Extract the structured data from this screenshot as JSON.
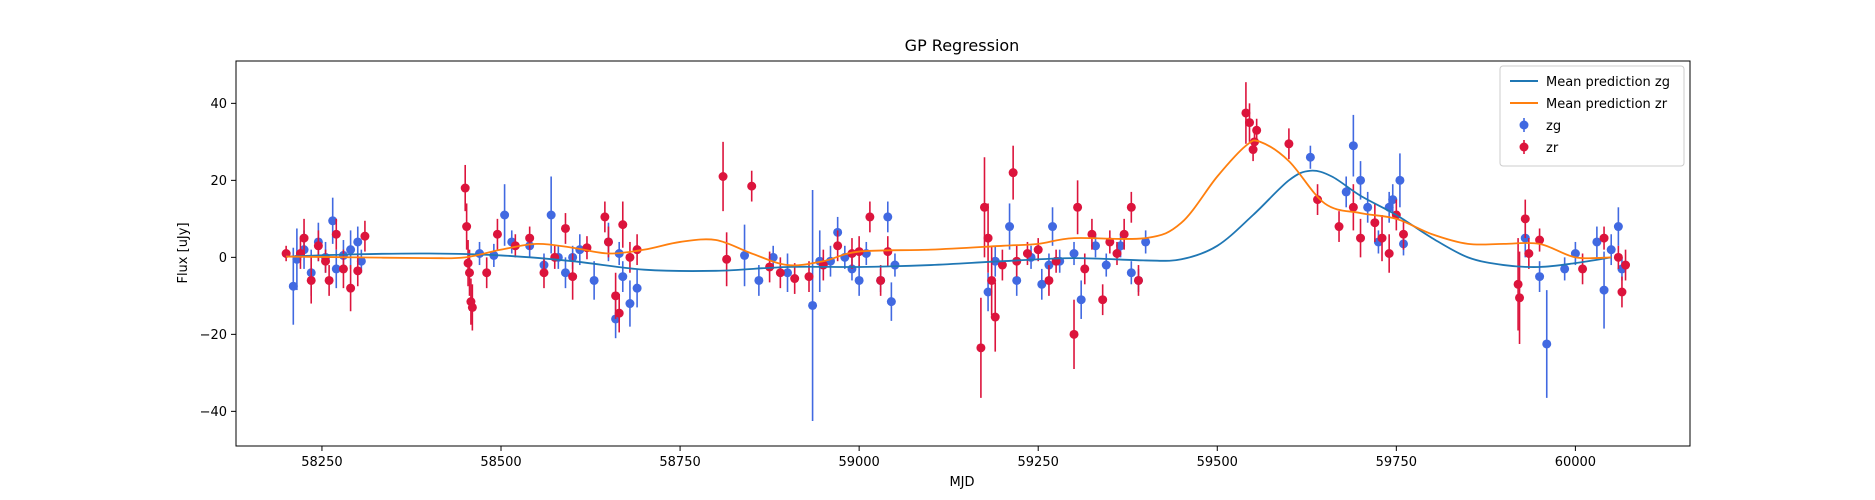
{
  "chart_data": {
    "type": "scatter",
    "title": "GP Regression",
    "xlabel": "MJD",
    "ylabel": "Flux [uJy]",
    "xlim": [
      58130,
      60160
    ],
    "ylim": [
      -49,
      51
    ],
    "xticks": [
      58250,
      58500,
      58750,
      59000,
      59250,
      59500,
      59750,
      60000
    ],
    "yticks": [
      -40,
      -20,
      0,
      20,
      40
    ],
    "grid": false,
    "legend_position": "top-right",
    "series": [
      {
        "name": "Mean prediction zg",
        "kind": "line",
        "color": "#1f77b4",
        "points": [
          [
            58200,
            0.2
          ],
          [
            58300,
            0.8
          ],
          [
            58400,
            1.0
          ],
          [
            58500,
            0.5
          ],
          [
            58600,
            -1.0
          ],
          [
            58700,
            -3.2
          ],
          [
            58800,
            -3.5
          ],
          [
            58900,
            -2.5
          ],
          [
            59000,
            -2.5
          ],
          [
            59100,
            -2.0
          ],
          [
            59200,
            -1.0
          ],
          [
            59300,
            -0.2
          ],
          [
            59400,
            -0.8
          ],
          [
            59450,
            -0.5
          ],
          [
            59500,
            3.0
          ],
          [
            59550,
            11.0
          ],
          [
            59600,
            20.0
          ],
          [
            59630,
            22.5
          ],
          [
            59660,
            21.0
          ],
          [
            59700,
            16.0
          ],
          [
            59750,
            11.0
          ],
          [
            59800,
            5.0
          ],
          [
            59850,
            0.0
          ],
          [
            59900,
            -2.0
          ],
          [
            59950,
            -2.5
          ],
          [
            60000,
            -1.5
          ],
          [
            60050,
            0.0
          ]
        ]
      },
      {
        "name": "Mean prediction zr",
        "kind": "line",
        "color": "#ff7f0e",
        "points": [
          [
            58200,
            0.2
          ],
          [
            58300,
            0.0
          ],
          [
            58400,
            -0.2
          ],
          [
            58450,
            0.0
          ],
          [
            58500,
            2.0
          ],
          [
            58550,
            3.5
          ],
          [
            58600,
            2.5
          ],
          [
            58650,
            1.0
          ],
          [
            58700,
            2.0
          ],
          [
            58750,
            4.0
          ],
          [
            58800,
            4.5
          ],
          [
            58850,
            1.0
          ],
          [
            58900,
            -2.0
          ],
          [
            58950,
            -1.0
          ],
          [
            59000,
            1.5
          ],
          [
            59100,
            2.0
          ],
          [
            59200,
            3.0
          ],
          [
            59250,
            3.5
          ],
          [
            59300,
            5.0
          ],
          [
            59400,
            5.0
          ],
          [
            59450,
            9.0
          ],
          [
            59500,
            21.0
          ],
          [
            59540,
            29.0
          ],
          [
            59560,
            30.0
          ],
          [
            59600,
            25.0
          ],
          [
            59650,
            14.0
          ],
          [
            59700,
            11.5
          ],
          [
            59750,
            10.0
          ],
          [
            59800,
            6.0
          ],
          [
            59850,
            3.5
          ],
          [
            59900,
            3.5
          ],
          [
            59950,
            3.5
          ],
          [
            60000,
            0.0
          ],
          [
            60050,
            0.0
          ]
        ]
      },
      {
        "name": "zg",
        "kind": "errorbar",
        "color": "#4169e1",
        "points": [
          [
            58210,
            -7.5,
            10
          ],
          [
            58215,
            -0.5,
            8
          ],
          [
            58225,
            2,
            5
          ],
          [
            58235,
            -4,
            6
          ],
          [
            58245,
            4,
            5
          ],
          [
            58255,
            0,
            4
          ],
          [
            58265,
            9.5,
            6
          ],
          [
            58270,
            -3,
            5
          ],
          [
            58280,
            0.5,
            4
          ],
          [
            58290,
            2,
            5
          ],
          [
            58300,
            4,
            4
          ],
          [
            58305,
            -1,
            3
          ],
          [
            58470,
            1,
            3
          ],
          [
            58490,
            0.5,
            3
          ],
          [
            58505,
            11,
            8
          ],
          [
            58515,
            4,
            3
          ],
          [
            58540,
            3,
            3
          ],
          [
            58560,
            -2,
            3
          ],
          [
            58570,
            11,
            10
          ],
          [
            58580,
            0,
            3
          ],
          [
            58590,
            -4,
            4
          ],
          [
            58600,
            0,
            3
          ],
          [
            58610,
            2,
            4
          ],
          [
            58630,
            -6,
            5
          ],
          [
            58650,
            4,
            5
          ],
          [
            58660,
            -16,
            5
          ],
          [
            58665,
            1,
            3
          ],
          [
            58670,
            -5,
            4
          ],
          [
            58680,
            -12,
            6
          ],
          [
            58690,
            -8,
            5
          ],
          [
            58840,
            0.5,
            8
          ],
          [
            58860,
            -6,
            4
          ],
          [
            58880,
            0,
            3
          ],
          [
            58900,
            -4,
            5
          ],
          [
            58935,
            -12.5,
            30
          ],
          [
            58945,
            -1,
            8
          ],
          [
            58960,
            -1,
            4
          ],
          [
            58970,
            6.5,
            4
          ],
          [
            58980,
            0,
            3
          ],
          [
            58990,
            -3,
            3
          ],
          [
            59000,
            -6,
            4
          ],
          [
            59010,
            1,
            3
          ],
          [
            59030,
            -6,
            3
          ],
          [
            59040,
            10.5,
            4
          ],
          [
            59045,
            -11.5,
            5
          ],
          [
            59050,
            -2,
            3
          ],
          [
            59180,
            -9,
            5
          ],
          [
            59190,
            -1,
            4
          ],
          [
            59210,
            8,
            6
          ],
          [
            59220,
            -6,
            4
          ],
          [
            59240,
            0,
            3
          ],
          [
            59255,
            -7,
            4
          ],
          [
            59265,
            -2,
            3
          ],
          [
            59270,
            8,
            5
          ],
          [
            59280,
            -1,
            3
          ],
          [
            59300,
            1,
            3
          ],
          [
            59310,
            -11,
            5
          ],
          [
            59330,
            3,
            3
          ],
          [
            59345,
            -2,
            3
          ],
          [
            59365,
            3,
            3
          ],
          [
            59380,
            -4,
            3
          ],
          [
            59390,
            -6,
            3
          ],
          [
            59400,
            4,
            3
          ],
          [
            59630,
            26,
            3
          ],
          [
            59680,
            17,
            4
          ],
          [
            59690,
            29,
            8
          ],
          [
            59700,
            20,
            5
          ],
          [
            59710,
            13,
            4
          ],
          [
            59725,
            4,
            3
          ],
          [
            59740,
            13,
            4
          ],
          [
            59745,
            15,
            4
          ],
          [
            59755,
            20,
            7
          ],
          [
            59760,
            3.5,
            3
          ],
          [
            59930,
            5,
            5
          ],
          [
            59950,
            -5,
            4
          ],
          [
            59960,
            -22.5,
            14
          ],
          [
            59985,
            -3,
            3
          ],
          [
            60000,
            1,
            3
          ],
          [
            60030,
            4,
            4
          ],
          [
            60040,
            -8.5,
            10
          ],
          [
            60050,
            2,
            4
          ],
          [
            60060,
            8,
            5
          ],
          [
            60065,
            -3,
            3
          ]
        ]
      },
      {
        "name": "zr",
        "kind": "errorbar",
        "color": "#dc143c",
        "points": [
          [
            58200,
            1,
            2
          ],
          [
            58220,
            1,
            4
          ],
          [
            58225,
            5,
            5
          ],
          [
            58235,
            -6,
            6
          ],
          [
            58245,
            3,
            4
          ],
          [
            58255,
            -1,
            3
          ],
          [
            58260,
            -6,
            4
          ],
          [
            58270,
            6,
            4
          ],
          [
            58280,
            -3,
            5
          ],
          [
            58290,
            -8,
            6
          ],
          [
            58300,
            -3.5,
            4
          ],
          [
            58310,
            5.5,
            4
          ],
          [
            58450,
            18,
            6
          ],
          [
            58452,
            8,
            6
          ],
          [
            58454,
            -1.5,
            6
          ],
          [
            58456,
            -4,
            6
          ],
          [
            58458,
            -11.5,
            6
          ],
          [
            58460,
            -13,
            6
          ],
          [
            58480,
            -4,
            4
          ],
          [
            58495,
            6,
            4
          ],
          [
            58520,
            3,
            3
          ],
          [
            58540,
            5,
            3
          ],
          [
            58560,
            -4,
            4
          ],
          [
            58575,
            0,
            3
          ],
          [
            58590,
            7.5,
            4
          ],
          [
            58600,
            -5,
            6
          ],
          [
            58620,
            2.5,
            3
          ],
          [
            58645,
            10.5,
            4
          ],
          [
            58650,
            4,
            4
          ],
          [
            58660,
            -10,
            6
          ],
          [
            58665,
            -14.5,
            5
          ],
          [
            58670,
            8.5,
            6
          ],
          [
            58680,
            0,
            4
          ],
          [
            58690,
            2,
            4
          ],
          [
            58810,
            21,
            9
          ],
          [
            58815,
            -0.5,
            7
          ],
          [
            58850,
            18.5,
            4
          ],
          [
            58875,
            -2.5,
            4
          ],
          [
            58890,
            -4,
            4
          ],
          [
            58910,
            -5.5,
            4
          ],
          [
            58930,
            -5,
            4
          ],
          [
            58950,
            -2,
            4
          ],
          [
            58970,
            3,
            4
          ],
          [
            58990,
            1,
            4
          ],
          [
            59000,
            1.5,
            4
          ],
          [
            59015,
            10.5,
            4
          ],
          [
            59030,
            -6,
            4
          ],
          [
            59040,
            1.5,
            4
          ],
          [
            59170,
            -23.5,
            13
          ],
          [
            59175,
            13,
            13
          ],
          [
            59180,
            5,
            9
          ],
          [
            59185,
            -6,
            9
          ],
          [
            59190,
            -15.5,
            9
          ],
          [
            59200,
            -2,
            4
          ],
          [
            59215,
            22,
            7
          ],
          [
            59220,
            -1,
            4
          ],
          [
            59235,
            1,
            3
          ],
          [
            59250,
            2,
            3
          ],
          [
            59265,
            -6,
            4
          ],
          [
            59275,
            -1,
            3
          ],
          [
            59300,
            -20,
            9
          ],
          [
            59305,
            13,
            7
          ],
          [
            59315,
            -3,
            4
          ],
          [
            59325,
            6,
            4
          ],
          [
            59340,
            -11,
            4
          ],
          [
            59350,
            4,
            3
          ],
          [
            59360,
            1,
            3
          ],
          [
            59370,
            6,
            4
          ],
          [
            59380,
            13,
            4
          ],
          [
            59390,
            -6,
            4
          ],
          [
            59540,
            37.5,
            8
          ],
          [
            59545,
            35,
            5
          ],
          [
            59550,
            28,
            3
          ],
          [
            59552,
            30,
            3
          ],
          [
            59555,
            33,
            3
          ],
          [
            59600,
            29.5,
            4
          ],
          [
            59640,
            15,
            4
          ],
          [
            59670,
            8,
            4
          ],
          [
            59690,
            13,
            6
          ],
          [
            59700,
            5,
            5
          ],
          [
            59720,
            9,
            5
          ],
          [
            59730,
            5,
            6
          ],
          [
            59740,
            1,
            5
          ],
          [
            59750,
            11,
            4
          ],
          [
            59760,
            6,
            4
          ],
          [
            59920,
            -7,
            12
          ],
          [
            59922,
            -10.5,
            12
          ],
          [
            59930,
            10,
            5
          ],
          [
            59935,
            1,
            4
          ],
          [
            59950,
            4.5,
            3
          ],
          [
            60010,
            -3,
            4
          ],
          [
            60040,
            5,
            3
          ],
          [
            60060,
            0,
            3
          ],
          [
            60065,
            -9,
            4
          ],
          [
            60070,
            -2,
            4
          ]
        ]
      }
    ]
  }
}
